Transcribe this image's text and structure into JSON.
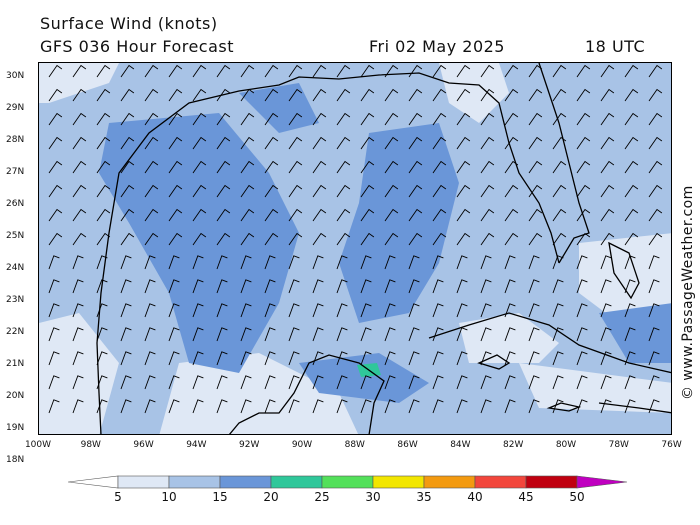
{
  "header": {
    "title": "Surface Wind (knots)",
    "subtitle": "GFS 036 Hour Forecast",
    "date": "Fri 02 May 2025",
    "time": "18 UTC"
  },
  "credit": "© www.PassageWeather.com",
  "map": {
    "lat_labels": [
      "30N",
      "29N",
      "28N",
      "27N",
      "26N",
      "25N",
      "24N",
      "23N",
      "22N",
      "21N",
      "20N",
      "19N",
      "18N"
    ],
    "lon_labels": [
      "100W",
      "98W",
      "96W",
      "94W",
      "92W",
      "90W",
      "88W",
      "86W",
      "84W",
      "82W",
      "80W",
      "78W",
      "76W"
    ],
    "lat_range": [
      18,
      30.5
    ],
    "lon_range": [
      -100,
      -76
    ]
  },
  "legend": {
    "labels": [
      "5",
      "10",
      "15",
      "20",
      "25",
      "30",
      "35",
      "40",
      "45",
      "50"
    ],
    "colors": [
      "#dfe8f5",
      "#a8c3e6",
      "#6a96d8",
      "#2fc79a",
      "#53e05a",
      "#f2e600",
      "#f39a10",
      "#f2463c",
      "#c00010",
      "#c000c0"
    ]
  }
}
